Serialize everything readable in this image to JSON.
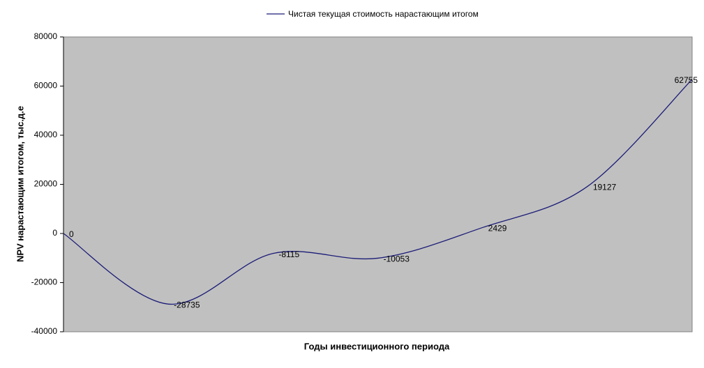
{
  "chart_data": {
    "type": "line",
    "title": "",
    "xlabel": "Годы инвестиционного периода",
    "ylabel": "NPV нарастающим итогом, тыс.д.е",
    "categories": [
      null,
      null,
      null,
      null,
      null,
      null,
      null
    ],
    "series": [
      {
        "name": "Чистая текущая стоимость нарастающим итогом",
        "color": "#1c1c78",
        "values": [
          0,
          -28735,
          -8115,
          -10053,
          2429,
          19127,
          62755
        ]
      }
    ],
    "ylim": [
      -40000,
      80000
    ],
    "yticks": [
      -40000,
      -20000,
      0,
      20000,
      40000,
      60000,
      80000
    ],
    "plot_background": "#c0c0c0",
    "smooth": true,
    "data_labels": true,
    "legend": "top"
  }
}
